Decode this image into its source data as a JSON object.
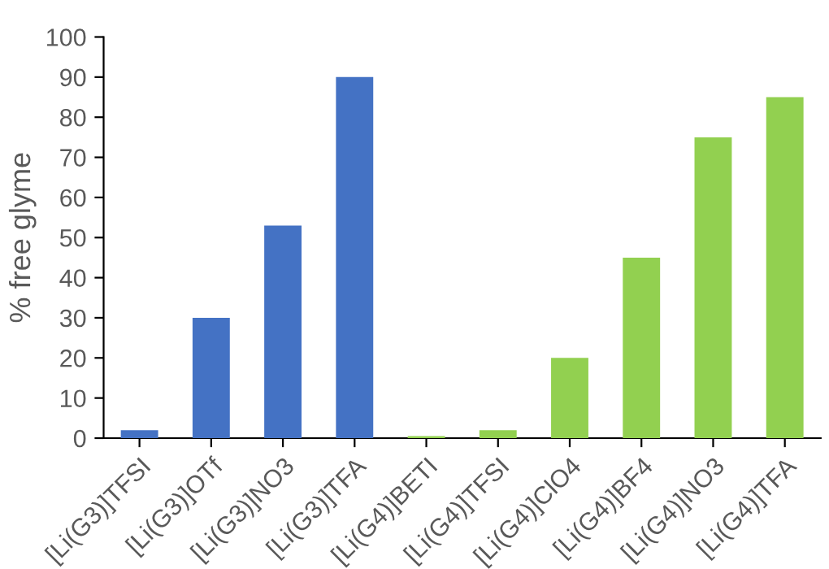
{
  "chart_data": {
    "type": "bar",
    "ylabel": "% free glyme",
    "categories": [
      "[Li(G3)]TFSI",
      "[Li(G3)]OTf",
      "[Li(G3)]NO3",
      "[Li(G3)]TFA",
      "[Li(G4)]BETI",
      "[Li(G4)]TFSI",
      "[Li(G4)]ClO4",
      "[Li(G4)]BF4",
      "[Li(G4)]NO3",
      "[Li(G4)]TFA"
    ],
    "values": [
      2,
      30,
      53,
      90,
      0.5,
      2,
      20,
      45,
      75,
      85
    ],
    "colors": [
      "#4472c4",
      "#4472c4",
      "#4472c4",
      "#4472c4",
      "#92d050",
      "#92d050",
      "#92d050",
      "#92d050",
      "#92d050",
      "#92d050"
    ],
    "ylim": [
      0,
      100
    ],
    "yticks": [
      0,
      10,
      20,
      30,
      40,
      50,
      60,
      70,
      80,
      90,
      100
    ],
    "grid": false
  }
}
